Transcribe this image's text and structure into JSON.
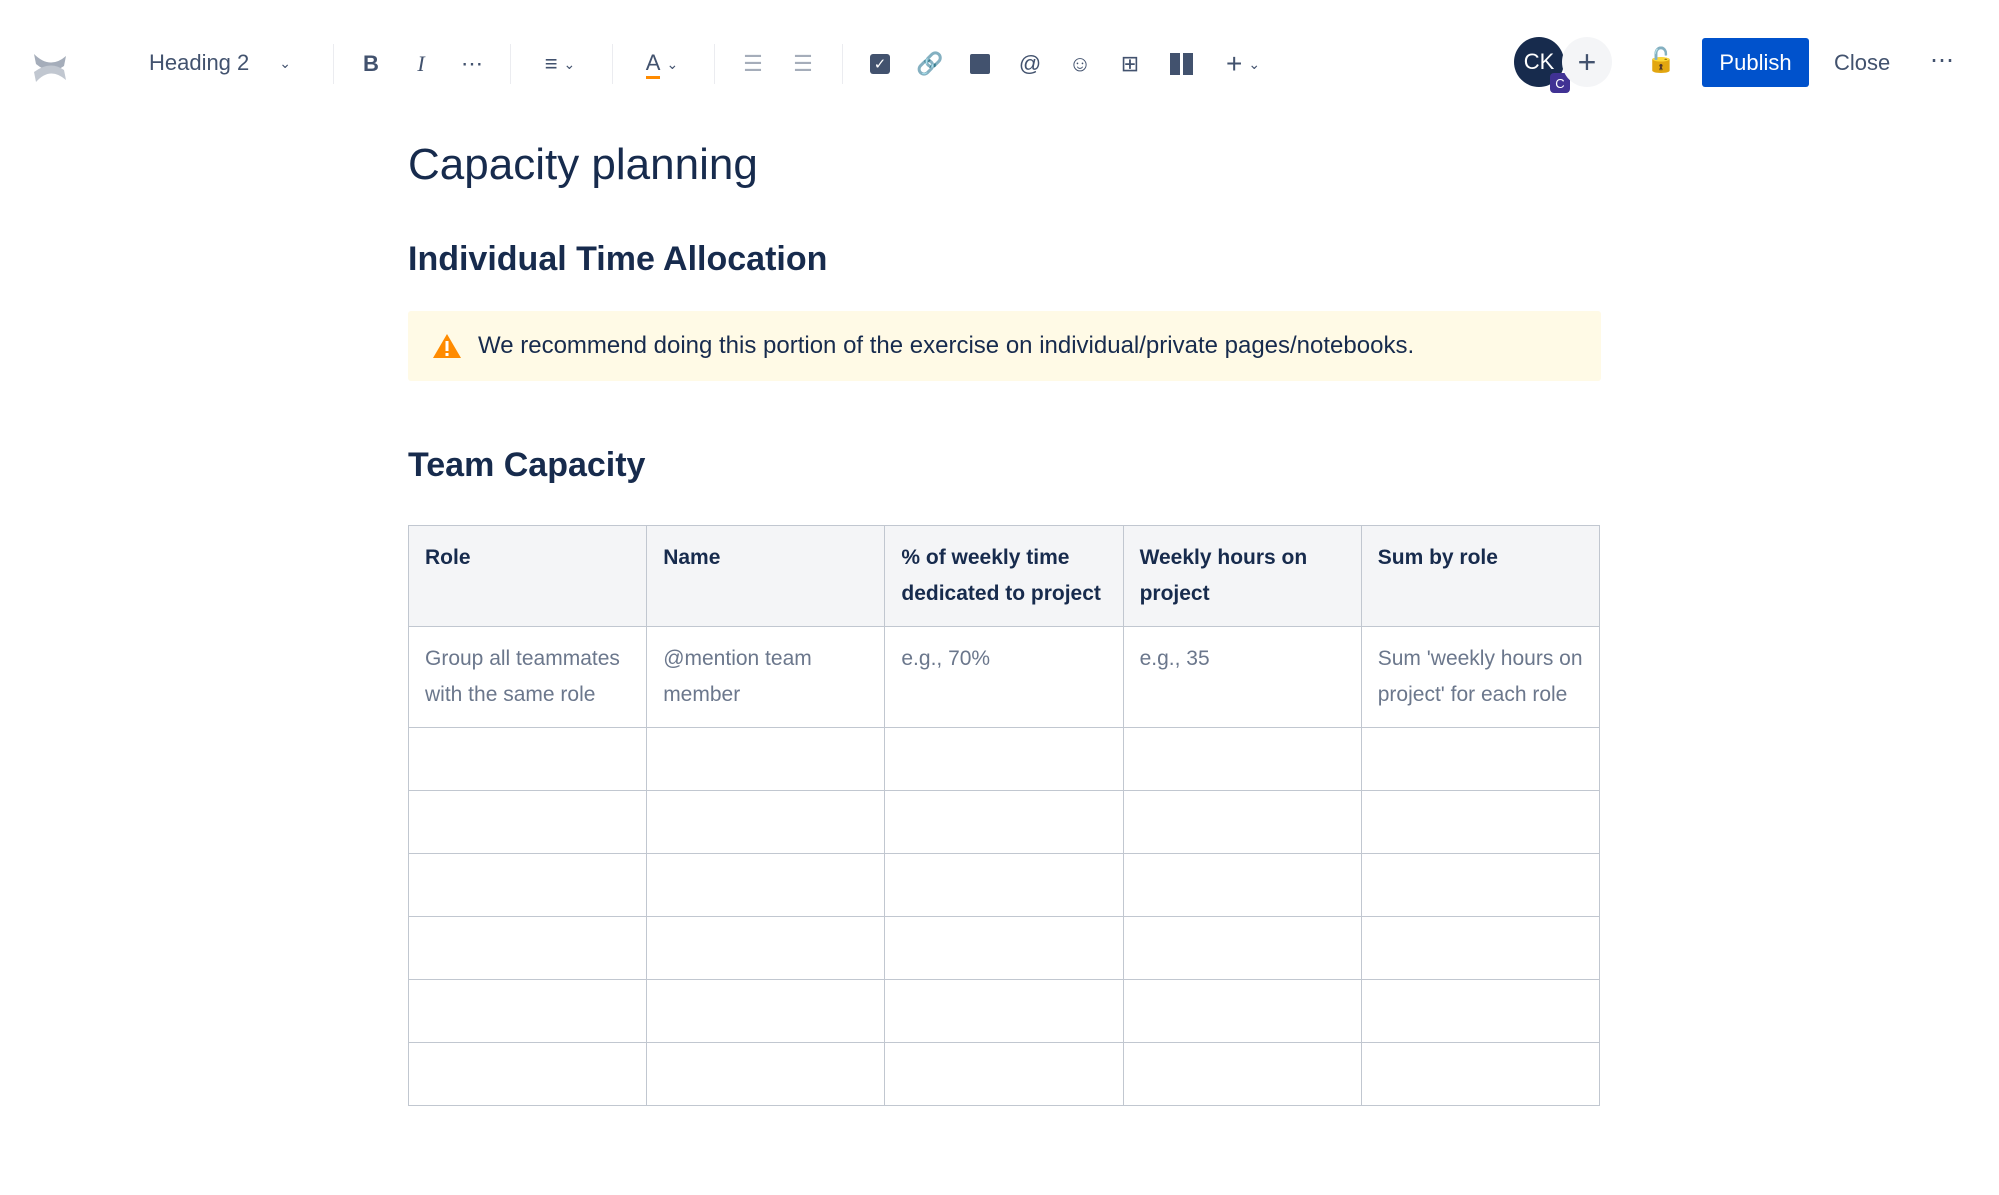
{
  "toolbar": {
    "text_style": "Heading 2",
    "icons": [
      "confluence-logo",
      "bold",
      "italic",
      "more-formatting",
      "align",
      "text-color",
      "bullet-list",
      "numbered-list",
      "action-item",
      "link",
      "image",
      "mention",
      "emoji",
      "table",
      "layouts",
      "insert"
    ]
  },
  "header": {
    "avatar_initials": "CK",
    "avatar_badge": "C",
    "publish_label": "Publish",
    "close_label": "Close",
    "accent": "#0052cc"
  },
  "page": {
    "title": "Capacity planning",
    "section1": "Individual Time Allocation",
    "warning": "We recommend doing this portion of the exercise on individual/private pages/notebooks.",
    "section2": "Team Capacity"
  },
  "table": {
    "headers": [
      "Role",
      "Name",
      "% of weekly time dedicated to project",
      "Weekly hours on project",
      "Sum by role"
    ],
    "example_row": [
      "Group all teammates with the same role",
      "@mention team member",
      "e.g., 70%",
      "e.g., 35",
      "Sum 'weekly hours on project' for each role"
    ]
  }
}
